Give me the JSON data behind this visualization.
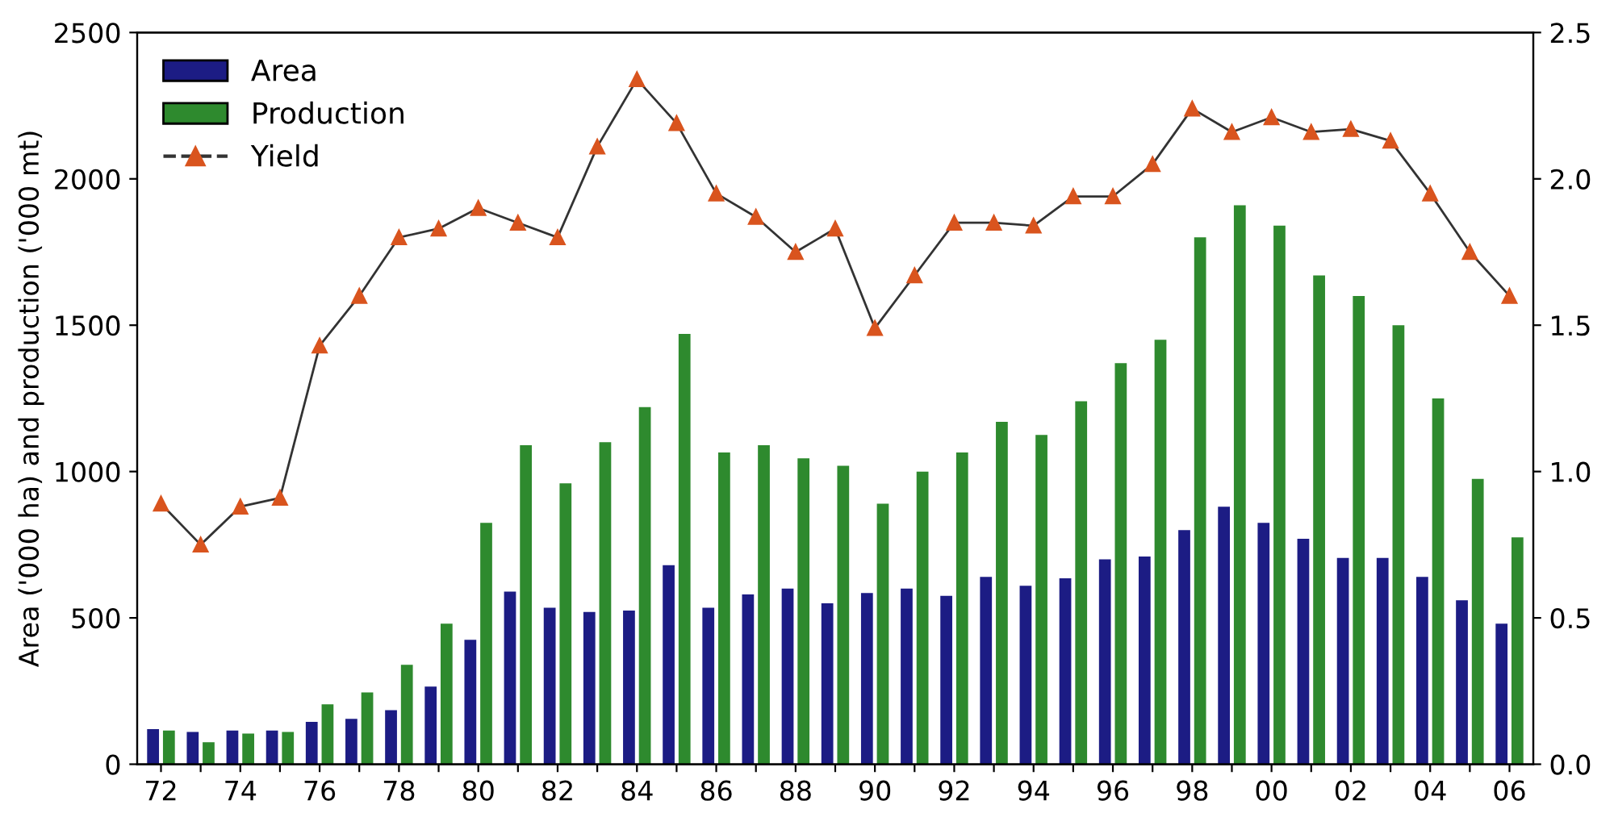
{
  "chart_data": {
    "type": "bar",
    "ylabel": "Area ('000 ha) and production ('000 mt)",
    "categories": [
      "72",
      null,
      "74",
      null,
      "76",
      null,
      "78",
      null,
      "80",
      null,
      "82",
      null,
      "84",
      null,
      "86",
      null,
      "88",
      null,
      "90",
      null,
      "92",
      null,
      "94",
      null,
      "96",
      null,
      "98",
      null,
      "00",
      null,
      "02",
      null,
      "04",
      null,
      "06"
    ],
    "series": [
      {
        "name": "Area",
        "color": "#1c1c84",
        "values": [
          120,
          110,
          115,
          115,
          145,
          155,
          185,
          265,
          425,
          590,
          535,
          520,
          525,
          680,
          535,
          580,
          600,
          550,
          585,
          600,
          575,
          640,
          610,
          635,
          700,
          710,
          800,
          880,
          825,
          770,
          705,
          705,
          640,
          560,
          480
        ]
      },
      {
        "name": "Production",
        "color": "#2e8a2e",
        "values": [
          115,
          75,
          105,
          110,
          205,
          245,
          340,
          480,
          825,
          1090,
          960,
          1100,
          1220,
          1470,
          1065,
          1090,
          1045,
          1020,
          890,
          1000,
          1065,
          1170,
          1125,
          1240,
          1370,
          1450,
          1800,
          1910,
          1840,
          1670,
          1600,
          1500,
          1250,
          975,
          775
        ]
      },
      {
        "name": "Yield",
        "type": "line",
        "axis": "y2",
        "color": "#d9541e",
        "marker": "triangle",
        "line_style": "solid",
        "values": [
          0.89,
          0.75,
          0.88,
          0.91,
          1.43,
          1.6,
          1.8,
          1.83,
          1.9,
          1.85,
          1.8,
          2.11,
          2.34,
          2.19,
          1.95,
          1.87,
          1.75,
          1.83,
          1.49,
          1.67,
          1.85,
          1.85,
          1.84,
          1.94,
          1.94,
          2.05,
          2.24,
          2.16,
          2.21,
          2.16,
          2.17,
          2.13,
          1.95,
          1.75,
          1.6
        ]
      }
    ],
    "ylim": [
      0,
      2500
    ],
    "yticks": [
      0,
      500,
      1000,
      1500,
      2000,
      2500
    ],
    "y2lim": [
      0,
      2.5
    ],
    "y2ticks": [
      {
        "value": 0,
        "label": "0.0"
      },
      {
        "value": 0.5,
        "label": "0.5"
      },
      {
        "value": 1,
        "label": "1.0"
      },
      {
        "value": 1.5,
        "label": "1.5"
      },
      {
        "value": 2,
        "label": "2.0"
      },
      {
        "value": 2.5,
        "label": "2.5"
      }
    ],
    "legend": "top left",
    "grid": false
  }
}
